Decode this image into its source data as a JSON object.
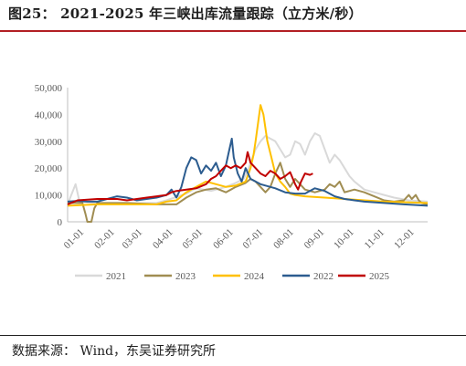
{
  "title": "图25：  2021-2025 年三峡出库流量跟踪（立方米/秒）",
  "source": "数据来源：  Wind，东吴证券研究所",
  "chart_data": {
    "type": "line",
    "ylim": [
      0,
      50000
    ],
    "y_ticks": [
      "0",
      "10,000",
      "20,000",
      "30,000",
      "40,000",
      "50,000"
    ],
    "x_ticks": [
      "01-01",
      "02-01",
      "03-01",
      "04-01",
      "05-01",
      "06-01",
      "07-01",
      "08-01",
      "09-01",
      "10-01",
      "11-01",
      "12-01"
    ],
    "legend_position": "bottom",
    "series": [
      {
        "name": "2021",
        "color": "#d9d9d9",
        "points": [
          [
            0,
            6500
          ],
          [
            8,
            14000
          ],
          [
            12,
            7500
          ],
          [
            30,
            7000
          ],
          [
            60,
            6800
          ],
          [
            90,
            7000
          ],
          [
            100,
            8000
          ],
          [
            120,
            10500
          ],
          [
            130,
            12500
          ],
          [
            145,
            11500
          ],
          [
            160,
            13000
          ],
          [
            170,
            14500
          ],
          [
            178,
            16000
          ],
          [
            182,
            19000
          ],
          [
            186,
            23000
          ],
          [
            190,
            27000
          ],
          [
            195,
            30000
          ],
          [
            200,
            32000
          ],
          [
            205,
            31000
          ],
          [
            210,
            30000
          ],
          [
            215,
            27000
          ],
          [
            220,
            24000
          ],
          [
            225,
            25000
          ],
          [
            230,
            30000
          ],
          [
            235,
            29000
          ],
          [
            240,
            25000
          ],
          [
            245,
            30000
          ],
          [
            250,
            33000
          ],
          [
            255,
            32000
          ],
          [
            260,
            27000
          ],
          [
            265,
            22000
          ],
          [
            270,
            25000
          ],
          [
            275,
            23000
          ],
          [
            280,
            20000
          ],
          [
            285,
            17000
          ],
          [
            290,
            15000
          ],
          [
            300,
            12000
          ],
          [
            310,
            11000
          ],
          [
            320,
            10000
          ],
          [
            330,
            9000
          ],
          [
            345,
            8000
          ],
          [
            364,
            7500
          ]
        ]
      },
      {
        "name": "2023",
        "color": "#a08d52",
        "points": [
          [
            0,
            7000
          ],
          [
            15,
            7000
          ],
          [
            18,
            3000
          ],
          [
            20,
            0
          ],
          [
            24,
            0
          ],
          [
            27,
            5000
          ],
          [
            30,
            7000
          ],
          [
            60,
            7000
          ],
          [
            90,
            6500
          ],
          [
            110,
            6500
          ],
          [
            120,
            9000
          ],
          [
            130,
            11000
          ],
          [
            140,
            12000
          ],
          [
            150,
            12500
          ],
          [
            160,
            11000
          ],
          [
            170,
            13000
          ],
          [
            180,
            14500
          ],
          [
            185,
            16000
          ],
          [
            190,
            15000
          ],
          [
            195,
            13000
          ],
          [
            200,
            11000
          ],
          [
            205,
            13000
          ],
          [
            210,
            18000
          ],
          [
            215,
            22000
          ],
          [
            220,
            16000
          ],
          [
            225,
            13000
          ],
          [
            230,
            16000
          ],
          [
            235,
            14000
          ],
          [
            240,
            12000
          ],
          [
            250,
            11000
          ],
          [
            260,
            12000
          ],
          [
            265,
            14000
          ],
          [
            270,
            13000
          ],
          [
            275,
            15000
          ],
          [
            280,
            11000
          ],
          [
            290,
            12000
          ],
          [
            300,
            11000
          ],
          [
            310,
            9500
          ],
          [
            320,
            8000
          ],
          [
            330,
            7500
          ],
          [
            340,
            8000
          ],
          [
            345,
            10000
          ],
          [
            348,
            8500
          ],
          [
            352,
            10000
          ],
          [
            355,
            8000
          ],
          [
            358,
            7000
          ],
          [
            364,
            6500
          ]
        ]
      },
      {
        "name": "2024",
        "color": "#ffc000",
        "points": [
          [
            0,
            6000
          ],
          [
            30,
            6500
          ],
          [
            60,
            6500
          ],
          [
            90,
            6500
          ],
          [
            100,
            7500
          ],
          [
            110,
            8000
          ],
          [
            120,
            11000
          ],
          [
            130,
            13000
          ],
          [
            140,
            15000
          ],
          [
            150,
            14000
          ],
          [
            160,
            13000
          ],
          [
            170,
            13500
          ],
          [
            180,
            15000
          ],
          [
            185,
            20000
          ],
          [
            188,
            25000
          ],
          [
            190,
            30000
          ],
          [
            193,
            38000
          ],
          [
            195,
            43500
          ],
          [
            198,
            40000
          ],
          [
            202,
            30000
          ],
          [
            206,
            24000
          ],
          [
            210,
            18000
          ],
          [
            215,
            15000
          ],
          [
            220,
            13000
          ],
          [
            225,
            10500
          ],
          [
            230,
            10000
          ],
          [
            240,
            9500
          ],
          [
            260,
            9000
          ],
          [
            280,
            8500
          ],
          [
            300,
            8000
          ],
          [
            320,
            7500
          ],
          [
            340,
            7300
          ],
          [
            364,
            7000
          ]
        ]
      },
      {
        "name": "2022",
        "color": "#2c5c8f",
        "points": [
          [
            0,
            7500
          ],
          [
            10,
            7800
          ],
          [
            20,
            7500
          ],
          [
            30,
            7500
          ],
          [
            40,
            8500
          ],
          [
            50,
            9500
          ],
          [
            60,
            9000
          ],
          [
            70,
            8000
          ],
          [
            80,
            8500
          ],
          [
            90,
            9000
          ],
          [
            100,
            10000
          ],
          [
            105,
            12000
          ],
          [
            110,
            9000
          ],
          [
            115,
            13000
          ],
          [
            120,
            20000
          ],
          [
            125,
            24000
          ],
          [
            130,
            23000
          ],
          [
            135,
            18000
          ],
          [
            140,
            21000
          ],
          [
            145,
            19000
          ],
          [
            150,
            22000
          ],
          [
            155,
            17000
          ],
          [
            160,
            21000
          ],
          [
            163,
            26000
          ],
          [
            166,
            31000
          ],
          [
            168,
            24000
          ],
          [
            172,
            18000
          ],
          [
            176,
            15000
          ],
          [
            180,
            20000
          ],
          [
            185,
            16000
          ],
          [
            190,
            15000
          ],
          [
            195,
            14000
          ],
          [
            200,
            13500
          ],
          [
            210,
            12500
          ],
          [
            220,
            11000
          ],
          [
            230,
            10500
          ],
          [
            240,
            10500
          ],
          [
            250,
            12500
          ],
          [
            260,
            11500
          ],
          [
            270,
            9500
          ],
          [
            280,
            8500
          ],
          [
            290,
            8000
          ],
          [
            300,
            7500
          ],
          [
            320,
            7000
          ],
          [
            340,
            6500
          ],
          [
            364,
            6000
          ]
        ]
      },
      {
        "name": "2025",
        "color": "#c00000",
        "points": [
          [
            0,
            6500
          ],
          [
            10,
            8000
          ],
          [
            30,
            8500
          ],
          [
            50,
            8500
          ],
          [
            60,
            8000
          ],
          [
            70,
            8500
          ],
          [
            80,
            9000
          ],
          [
            90,
            9500
          ],
          [
            100,
            10000
          ],
          [
            105,
            11000
          ],
          [
            110,
            11500
          ],
          [
            120,
            12000
          ],
          [
            130,
            12500
          ],
          [
            140,
            14000
          ],
          [
            145,
            16000
          ],
          [
            150,
            17000
          ],
          [
            155,
            19000
          ],
          [
            160,
            21000
          ],
          [
            165,
            20000
          ],
          [
            170,
            21000
          ],
          [
            175,
            20000
          ],
          [
            180,
            22000
          ],
          [
            182,
            26000
          ],
          [
            185,
            22000
          ],
          [
            190,
            20000
          ],
          [
            195,
            18000
          ],
          [
            200,
            17000
          ],
          [
            205,
            19000
          ],
          [
            210,
            18000
          ],
          [
            215,
            16000
          ],
          [
            220,
            17000
          ],
          [
            225,
            18500
          ],
          [
            230,
            14000
          ],
          [
            233,
            12000
          ],
          [
            236,
            15000
          ],
          [
            240,
            18000
          ],
          [
            245,
            17500
          ],
          [
            248,
            18000
          ]
        ]
      }
    ]
  }
}
